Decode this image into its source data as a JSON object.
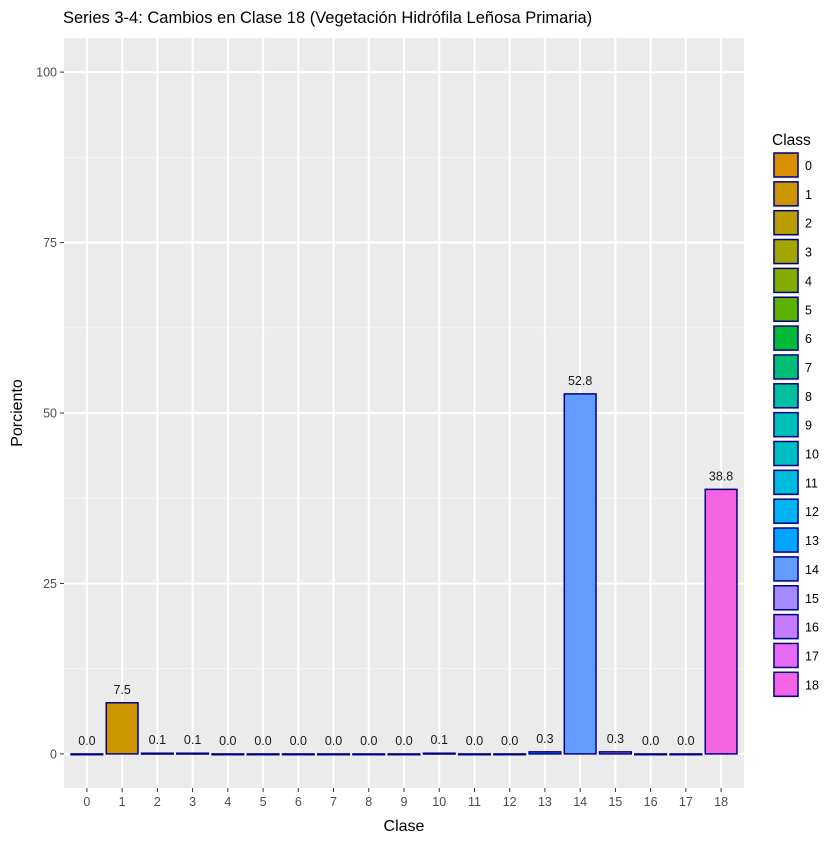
{
  "chart_data": {
    "type": "bar",
    "title": "Series 3-4: Cambios en Clase 18 (Vegetación Hidrófila Leñosa Primaria)",
    "xlabel": "Clase",
    "ylabel": "Porciento",
    "ylim": [
      -5,
      105
    ],
    "yticks": [
      0,
      25,
      50,
      75,
      100
    ],
    "categories": [
      "0",
      "1",
      "2",
      "3",
      "4",
      "5",
      "6",
      "7",
      "8",
      "9",
      "10",
      "11",
      "12",
      "13",
      "14",
      "15",
      "16",
      "17",
      "18"
    ],
    "values": [
      0.0,
      7.5,
      0.1,
      0.1,
      0.0,
      0.0,
      0.0,
      0.0,
      0.0,
      0.0,
      0.1,
      0.0,
      0.0,
      0.3,
      52.8,
      0.3,
      0.0,
      0.0,
      38.8
    ],
    "value_labels": [
      "0.0",
      "7.5",
      "0.1",
      "0.1",
      "0.0",
      "0.0",
      "0.0",
      "0.0",
      "0.0",
      "0.0",
      "0.1",
      "0.0",
      "0.0",
      "0.3",
      "52.8",
      "0.3",
      "0.0",
      "0.0",
      "38.8"
    ],
    "colors": [
      "#D89000",
      "#CD9600",
      "#BB9D00",
      "#A3A500",
      "#85AD00",
      "#5BB300",
      "#00BA38",
      "#00BF74",
      "#00C19C",
      "#00C1B8",
      "#00BFC4",
      "#00BBDB",
      "#00B4F0",
      "#00A5FF",
      "#619CFF",
      "#A58AFF",
      "#C77CFF",
      "#E76BF3",
      "#F564E3"
    ],
    "bar_outline": "#000080",
    "panel_bg": "#EBEBEB",
    "grid": true,
    "legend": {
      "title": "Class",
      "position": "right",
      "entries": [
        "0",
        "1",
        "2",
        "3",
        "4",
        "5",
        "6",
        "7",
        "8",
        "9",
        "10",
        "11",
        "12",
        "13",
        "14",
        "15",
        "16",
        "17",
        "18"
      ]
    }
  }
}
